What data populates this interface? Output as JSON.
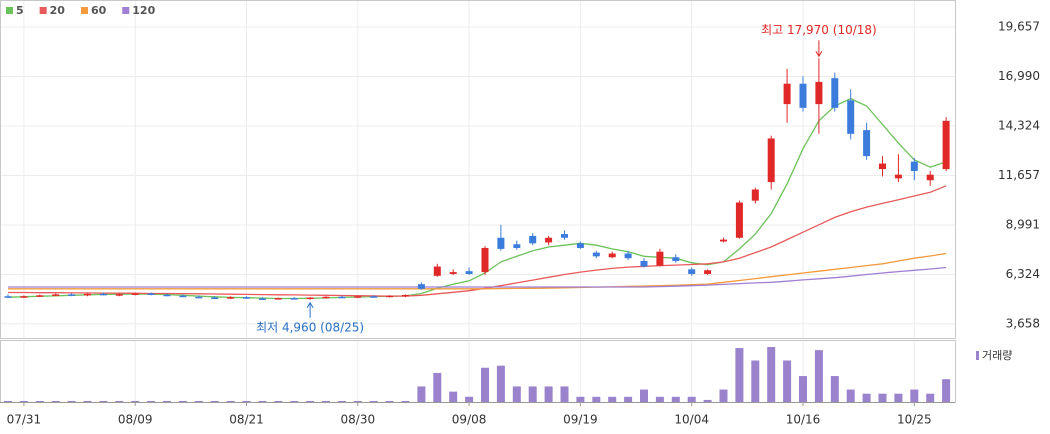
{
  "chart_data": {
    "type": "candlestick",
    "categories": [
      null,
      "07/31",
      null,
      null,
      null,
      null,
      null,
      null,
      "08/09",
      null,
      null,
      null,
      null,
      null,
      null,
      "08/21",
      null,
      null,
      null,
      null,
      null,
      null,
      "08/30",
      null,
      null,
      null,
      null,
      null,
      null,
      "09/08",
      null,
      null,
      null,
      null,
      null,
      null,
      "09/19",
      null,
      null,
      null,
      null,
      null,
      null,
      "10/04",
      null,
      null,
      null,
      null,
      null,
      null,
      "10/16",
      null,
      null,
      null,
      null,
      null,
      null,
      "10/25",
      null,
      null
    ],
    "open": [
      5150,
      5100,
      5150,
      5200,
      5250,
      5200,
      5280,
      5220,
      5260,
      5300,
      5230,
      5180,
      5120,
      5080,
      5050,
      5100,
      5030,
      5000,
      5050,
      5000,
      5080,
      5120,
      5100,
      5150,
      5120,
      5180,
      5800,
      6250,
      6350,
      6500,
      6450,
      8300,
      7950,
      8400,
      8050,
      8500,
      8000,
      7500,
      7250,
      7450,
      7050,
      6800,
      7250,
      6600,
      6350,
      8100,
      8300,
      10300,
      11300,
      15500,
      16600,
      15500,
      16900,
      15700,
      14100,
      12000,
      11500,
      12400,
      11400,
      12000
    ],
    "high": [
      5250,
      5200,
      5250,
      5300,
      5300,
      5300,
      5350,
      5300,
      5350,
      5350,
      5300,
      5250,
      5200,
      5150,
      5150,
      5150,
      5100,
      5080,
      5100,
      5100,
      5150,
      5200,
      5180,
      5200,
      5200,
      5250,
      5900,
      6900,
      6600,
      6700,
      7850,
      9000,
      8150,
      8550,
      8400,
      8700,
      8100,
      7600,
      7550,
      7600,
      7200,
      7700,
      7400,
      6700,
      6600,
      8300,
      10300,
      11000,
      13800,
      17400,
      17000,
      17970,
      17200,
      16300,
      14500,
      12700,
      12800,
      12600,
      11900,
      14800
    ],
    "low": [
      5050,
      5050,
      5100,
      5150,
      5150,
      5150,
      5200,
      5150,
      5200,
      5200,
      5150,
      5100,
      5050,
      5000,
      5000,
      5000,
      4980,
      4970,
      4980,
      4960,
      5020,
      5050,
      5050,
      5080,
      5080,
      5100,
      5500,
      6200,
      6300,
      6300,
      6300,
      7600,
      7650,
      7900,
      7900,
      8200,
      7700,
      7200,
      7200,
      7100,
      6700,
      6750,
      6950,
      6250,
      6300,
      8050,
      8250,
      10150,
      10900,
      14500,
      15100,
      13900,
      15100,
      13600,
      12500,
      11600,
      11300,
      11400,
      11100,
      11900
    ],
    "close": [
      5100,
      5150,
      5200,
      5250,
      5200,
      5280,
      5220,
      5260,
      5300,
      5230,
      5180,
      5120,
      5080,
      5050,
      5100,
      5030,
      5000,
      5050,
      5000,
      5080,
      5120,
      5100,
      5150,
      5120,
      5180,
      5220,
      5550,
      6750,
      6450,
      6350,
      7750,
      7700,
      7750,
      8000,
      8300,
      8300,
      7750,
      7300,
      7450,
      7200,
      6750,
      7550,
      7050,
      6350,
      6550,
      8200,
      10200,
      10900,
      13650,
      16600,
      15300,
      16700,
      15300,
      13900,
      12700,
      12300,
      11700,
      11900,
      11700,
      14600
    ],
    "up_color": "#e02828",
    "down_color": "#3a7bdc",
    "ma": [
      {
        "name": "5",
        "color": "#6cc25a",
        "values": [
          5100,
          5120,
          5150,
          5170,
          5200,
          5230,
          5250,
          5260,
          5270,
          5260,
          5240,
          5200,
          5160,
          5120,
          5090,
          5070,
          5050,
          5030,
          5030,
          5040,
          5060,
          5090,
          5110,
          5130,
          5150,
          5170,
          5300,
          5580,
          5800,
          5980,
          6400,
          7000,
          7300,
          7600,
          7800,
          7900,
          8000,
          7900,
          7700,
          7550,
          7300,
          7250,
          7200,
          6950,
          6850,
          7000,
          7700,
          8500,
          9600,
          11200,
          13100,
          14600,
          15400,
          15800,
          15400,
          14400,
          13400,
          12500,
          12100,
          12400
        ]
      },
      {
        "name": "20",
        "color": "#e85a5a",
        "values": [
          5350,
          5350,
          5340,
          5340,
          5330,
          5330,
          5320,
          5320,
          5310,
          5300,
          5300,
          5290,
          5280,
          5270,
          5260,
          5250,
          5240,
          5230,
          5220,
          5210,
          5200,
          5190,
          5180,
          5170,
          5160,
          5160,
          5200,
          5280,
          5360,
          5450,
          5580,
          5720,
          5870,
          6020,
          6170,
          6320,
          6450,
          6560,
          6650,
          6720,
          6760,
          6800,
          6830,
          6860,
          6900,
          7000,
          7200,
          7500,
          7800,
          8200,
          8600,
          9000,
          9400,
          9700,
          9950,
          10150,
          10350,
          10550,
          10750,
          11100
        ]
      },
      {
        "name": "60",
        "color": "#f39a3a",
        "values": [
          5550,
          5550,
          5550,
          5550,
          5550,
          5550,
          5550,
          5550,
          5550,
          5550,
          5550,
          5550,
          5550,
          5550,
          5550,
          5550,
          5550,
          5550,
          5550,
          5550,
          5550,
          5550,
          5550,
          5550,
          5550,
          5550,
          5550,
          5550,
          5550,
          5550,
          5550,
          5560,
          5570,
          5580,
          5590,
          5600,
          5620,
          5640,
          5660,
          5680,
          5700,
          5720,
          5740,
          5770,
          5800,
          5900,
          6000,
          6100,
          6200,
          6300,
          6400,
          6500,
          6600,
          6700,
          6800,
          6900,
          7050,
          7200,
          7320,
          7450
        ]
      },
      {
        "name": "120",
        "color": "#a07fd4",
        "values": [
          5650,
          5650,
          5650,
          5650,
          5650,
          5650,
          5650,
          5650,
          5650,
          5650,
          5650,
          5650,
          5650,
          5650,
          5650,
          5650,
          5650,
          5650,
          5650,
          5650,
          5650,
          5650,
          5650,
          5650,
          5650,
          5650,
          5650,
          5650,
          5650,
          5650,
          5650,
          5650,
          5650,
          5650,
          5650,
          5650,
          5650,
          5650,
          5650,
          5650,
          5650,
          5670,
          5690,
          5720,
          5750,
          5790,
          5830,
          5870,
          5900,
          5960,
          6030,
          6090,
          6150,
          6230,
          6320,
          6400,
          6480,
          6550,
          6620,
          6700
        ]
      }
    ],
    "volume": {
      "name": "거래량",
      "color": "#9a82cc",
      "values": [
        1,
        1,
        1,
        1,
        1,
        1,
        1,
        1,
        1,
        1,
        1,
        1,
        1,
        1,
        1,
        1,
        1,
        1,
        1,
        1,
        1,
        1,
        1,
        1,
        1,
        1,
        15,
        28,
        10,
        5,
        33,
        35,
        15,
        15,
        15,
        15,
        5,
        5,
        5,
        5,
        12,
        5,
        5,
        5,
        2,
        12,
        52,
        40,
        53,
        40,
        25,
        50,
        25,
        12,
        8,
        8,
        8,
        12,
        8,
        22
      ]
    },
    "annotations": [
      {
        "text": "최고 17,970 (10/18)",
        "value": 17970,
        "color": "#e02828"
      },
      {
        "text": "최저 4,960 (08/25)",
        "value": 4960,
        "color": "#2a6fc4"
      }
    ],
    "ylim": [
      2900,
      21110
    ],
    "yticks": [
      {
        "value": 19657,
        "label": "19,657"
      },
      {
        "value": 16990,
        "label": "16,990"
      },
      {
        "value": 14324,
        "label": "14,324"
      },
      {
        "value": 11657,
        "label": "11,657"
      },
      {
        "value": 8991,
        "label": "8,991"
      },
      {
        "value": 6324,
        "label": "6,324"
      },
      {
        "value": 3658,
        "label": "3,658"
      }
    ],
    "grid": true
  }
}
